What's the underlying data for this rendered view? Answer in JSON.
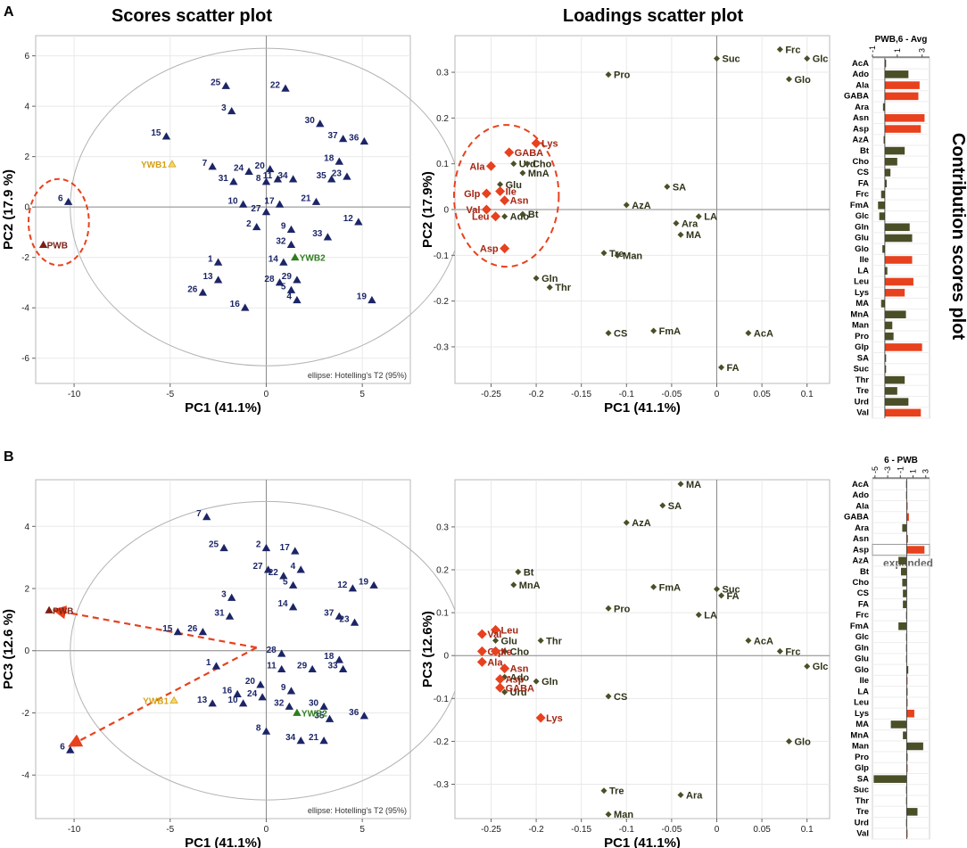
{
  "figure": {
    "panel_a_letter": "A",
    "panel_b_letter": "B",
    "scores_title": "Scores scatter plot",
    "loadings_title": "Loadings scatter plot",
    "contrib_title": "Contribution scores plot",
    "ellipse_note": "ellipse: Hotelling's T2 (95%)",
    "expanded_label": "expanded",
    "colors": {
      "scores_marker": "#1c2566",
      "loading_normal": "#4b4f27",
      "loading_highlight": "#e8411d",
      "label_highlight": "#a32512",
      "ywb1": "#d4a017",
      "ywb2": "#2e7d1e",
      "pwb": "#7a1f14",
      "bar_pos": "#e8411d",
      "bar_neg": "#4b4f27",
      "dashed": "#e8411d"
    }
  },
  "chart_data": [
    {
      "id": "A-scores",
      "type": "scatter",
      "xlabel": "PC1 (41.1%)",
      "ylabel": "PC2 (17.9 %)",
      "xlim": [
        -12,
        7.5
      ],
      "ylim": [
        -7,
        6.8
      ],
      "xticks": [
        -10,
        -5,
        0,
        5
      ],
      "yticks": [
        -6,
        -4,
        -2,
        0,
        2,
        4,
        6
      ],
      "points": [
        {
          "label": "1",
          "x": -2.5,
          "y": -2.2
        },
        {
          "label": "2",
          "x": -0.5,
          "y": -0.8
        },
        {
          "label": "3",
          "x": -1.8,
          "y": 3.8
        },
        {
          "label": "4",
          "x": 1.6,
          "y": -3.7
        },
        {
          "label": "5",
          "x": 1.3,
          "y": -3.3
        },
        {
          "label": "6",
          "x": -10.3,
          "y": 0.2
        },
        {
          "label": "7",
          "x": -2.8,
          "y": 1.6
        },
        {
          "label": "8",
          "x": 0,
          "y": 1.0
        },
        {
          "label": "9",
          "x": 1.3,
          "y": -0.9
        },
        {
          "label": "10",
          "x": -1.2,
          "y": 0.1
        },
        {
          "label": "11",
          "x": 0.6,
          "y": 1.1
        },
        {
          "label": "12",
          "x": 4.8,
          "y": -0.6
        },
        {
          "label": "13",
          "x": -2.5,
          "y": -2.9
        },
        {
          "label": "14",
          "x": 0.9,
          "y": -2.2
        },
        {
          "label": "15",
          "x": -5.2,
          "y": 2.8
        },
        {
          "label": "16",
          "x": -1.1,
          "y": -4.0
        },
        {
          "label": "17",
          "x": 0.7,
          "y": 0.1
        },
        {
          "label": "18",
          "x": 3.8,
          "y": 1.8
        },
        {
          "label": "19",
          "x": 5.5,
          "y": -3.7
        },
        {
          "label": "20",
          "x": 0.2,
          "y": 1.5
        },
        {
          "label": "21",
          "x": 2.6,
          "y": 0.2
        },
        {
          "label": "22",
          "x": 1.0,
          "y": 4.7
        },
        {
          "label": "23",
          "x": 4.2,
          "y": 1.2
        },
        {
          "label": "24",
          "x": -0.9,
          "y": 1.4
        },
        {
          "label": "25",
          "x": -2.1,
          "y": 4.8
        },
        {
          "label": "26",
          "x": -3.3,
          "y": -3.4
        },
        {
          "label": "27",
          "x": 0,
          "y": -0.2
        },
        {
          "label": "28",
          "x": 0.7,
          "y": -3.0
        },
        {
          "label": "29",
          "x": 1.6,
          "y": -2.9
        },
        {
          "label": "30",
          "x": 2.8,
          "y": 3.3
        },
        {
          "label": "31",
          "x": -1.7,
          "y": 1.0
        },
        {
          "label": "32",
          "x": 1.3,
          "y": -1.5
        },
        {
          "label": "33",
          "x": 3.2,
          "y": -1.2
        },
        {
          "label": "34",
          "x": 1.4,
          "y": 1.1
        },
        {
          "label": "35",
          "x": 3.4,
          "y": 1.1
        },
        {
          "label": "36",
          "x": 5.1,
          "y": 2.6
        },
        {
          "label": "37",
          "x": 4.0,
          "y": 2.7
        },
        {
          "label": "YWB1",
          "x": -4.9,
          "y": 1.7,
          "kind": "ywb1"
        },
        {
          "label": "YWB2",
          "x": 1.5,
          "y": -2.0,
          "kind": "ywb2"
        },
        {
          "label": "PWB",
          "x": -11.6,
          "y": -1.5,
          "kind": "pwb"
        }
      ]
    },
    {
      "id": "A-loadings",
      "type": "scatter",
      "xlabel": "PC1 (41.1%)",
      "ylabel": "PC2 (17.9%)",
      "xlim": [
        -0.29,
        0.125
      ],
      "ylim": [
        -0.38,
        0.38
      ],
      "xticks": [
        -0.25,
        -0.2,
        -0.15,
        -0.1,
        -0.05,
        0,
        0.05,
        0.1
      ],
      "yticks": [
        -0.3,
        -0.2,
        -0.1,
        0,
        0.1,
        0.2,
        0.3
      ],
      "points": [
        {
          "label": "Frc",
          "x": 0.07,
          "y": 0.35
        },
        {
          "label": "Glc",
          "x": 0.1,
          "y": 0.33
        },
        {
          "label": "Suc",
          "x": 0.0,
          "y": 0.33
        },
        {
          "label": "Glo",
          "x": 0.08,
          "y": 0.285
        },
        {
          "label": "Pro",
          "x": -0.12,
          "y": 0.295
        },
        {
          "label": "SA",
          "x": -0.055,
          "y": 0.05
        },
        {
          "label": "AzA",
          "x": -0.1,
          "y": 0.01
        },
        {
          "label": "LA",
          "x": -0.02,
          "y": -0.015
        },
        {
          "label": "Ara",
          "x": -0.045,
          "y": -0.03
        },
        {
          "label": "MA",
          "x": -0.04,
          "y": -0.055
        },
        {
          "label": "Tre",
          "x": -0.125,
          "y": -0.095
        },
        {
          "label": "Man",
          "x": -0.11,
          "y": -0.1
        },
        {
          "label": "Gln",
          "x": -0.2,
          "y": -0.15
        },
        {
          "label": "Thr",
          "x": -0.185,
          "y": -0.17
        },
        {
          "label": "CS",
          "x": -0.12,
          "y": -0.27
        },
        {
          "label": "FmA",
          "x": -0.07,
          "y": -0.265
        },
        {
          "label": "AcA",
          "x": 0.035,
          "y": -0.27
        },
        {
          "label": "FA",
          "x": 0.005,
          "y": -0.345
        },
        {
          "label": "Urd",
          "x": -0.225,
          "y": 0.1
        },
        {
          "label": "Cho",
          "x": -0.21,
          "y": 0.1
        },
        {
          "label": "MnA",
          "x": -0.215,
          "y": 0.08
        },
        {
          "label": "Glu",
          "x": -0.24,
          "y": 0.055
        },
        {
          "label": "Ado",
          "x": -0.235,
          "y": -0.015
        },
        {
          "label": "Bt",
          "x": -0.215,
          "y": -0.01
        },
        {
          "label": "Lys",
          "x": -0.2,
          "y": 0.145,
          "hl": true
        },
        {
          "label": "GABA",
          "x": -0.23,
          "y": 0.125,
          "hl": true
        },
        {
          "label": "Ala",
          "x": -0.25,
          "y": 0.095,
          "hl": true
        },
        {
          "label": "Glp",
          "x": -0.255,
          "y": 0.035,
          "hl": true
        },
        {
          "label": "Ile",
          "x": -0.24,
          "y": 0.04,
          "hl": true
        },
        {
          "label": "Asn",
          "x": -0.235,
          "y": 0.02,
          "hl": true
        },
        {
          "label": "Val",
          "x": -0.255,
          "y": 0.0,
          "hl": true
        },
        {
          "label": "Leu",
          "x": -0.245,
          "y": -0.015,
          "hl": true
        },
        {
          "label": "Asp",
          "x": -0.235,
          "y": -0.085,
          "hl": true
        }
      ]
    },
    {
      "id": "A-contrib",
      "type": "bar",
      "orientation": "horizontal",
      "title": "PWB,6 - Avg",
      "xticks": [
        -1,
        1,
        3
      ],
      "xlim": [
        -1,
        3.6
      ],
      "categories": [
        "AcA",
        "Ado",
        "Ala",
        "GABA",
        "Ara",
        "Asn",
        "Asp",
        "AzA",
        "Bt",
        "Cho",
        "CS",
        "FA",
        "Frc",
        "FmA",
        "Glc",
        "Gln",
        "Glu",
        "Glo",
        "Ile",
        "LA",
        "Leu",
        "Lys",
        "MA",
        "MnA",
        "Man",
        "Pro",
        "Glp",
        "SA",
        "Suc",
        "Thr",
        "Tre",
        "Urd",
        "Val"
      ],
      "values": [
        0.1,
        1.9,
        2.8,
        2.7,
        -0.15,
        3.2,
        2.9,
        -0.1,
        1.6,
        1.0,
        0.45,
        0.15,
        -0.3,
        -0.55,
        -0.45,
        2.0,
        2.2,
        -0.2,
        2.2,
        0.2,
        2.3,
        1.6,
        -0.3,
        1.7,
        0.6,
        0.7,
        3.0,
        0.1,
        0.1,
        1.6,
        1.0,
        1.9,
        2.9
      ],
      "highlight": [
        "Ala",
        "GABA",
        "Asn",
        "Asp",
        "Ile",
        "Leu",
        "Lys",
        "Glp",
        "Val"
      ]
    },
    {
      "id": "B-scores",
      "type": "scatter",
      "xlabel": "PC1 (41.1%)",
      "ylabel": "PC3 (12.6 %)",
      "xlim": [
        -12,
        7.5
      ],
      "ylim": [
        -5.4,
        5.5
      ],
      "xticks": [
        -10,
        -5,
        0,
        5
      ],
      "yticks": [
        -4,
        -2,
        0,
        2,
        4
      ],
      "points": [
        {
          "label": "1",
          "x": -2.6,
          "y": -0.5
        },
        {
          "label": "2",
          "x": 0,
          "y": 3.3
        },
        {
          "label": "3",
          "x": -1.8,
          "y": 1.7
        },
        {
          "label": "4",
          "x": 1.8,
          "y": 2.6
        },
        {
          "label": "5",
          "x": 1.4,
          "y": 2.1
        },
        {
          "label": "6",
          "x": -10.2,
          "y": -3.2
        },
        {
          "label": "7",
          "x": -3.1,
          "y": 4.3
        },
        {
          "label": "8",
          "x": 0,
          "y": -2.6
        },
        {
          "label": "9",
          "x": 1.3,
          "y": -1.3
        },
        {
          "label": "10",
          "x": -1.2,
          "y": -1.7
        },
        {
          "label": "11",
          "x": 0.8,
          "y": -0.6
        },
        {
          "label": "12",
          "x": 4.5,
          "y": 2.0
        },
        {
          "label": "13",
          "x": -2.8,
          "y": -1.7
        },
        {
          "label": "14",
          "x": 1.4,
          "y": 1.4
        },
        {
          "label": "15",
          "x": -4.6,
          "y": 0.6
        },
        {
          "label": "16",
          "x": -1.5,
          "y": -1.4
        },
        {
          "label": "17",
          "x": 1.5,
          "y": 3.2
        },
        {
          "label": "18",
          "x": 3.8,
          "y": -0.3
        },
        {
          "label": "19",
          "x": 5.6,
          "y": 2.1
        },
        {
          "label": "20",
          "x": -0.3,
          "y": -1.1
        },
        {
          "label": "21",
          "x": 3.0,
          "y": -2.9
        },
        {
          "label": "22",
          "x": 0.9,
          "y": 2.4
        },
        {
          "label": "23",
          "x": 4.6,
          "y": 0.9
        },
        {
          "label": "24",
          "x": -0.2,
          "y": -1.5
        },
        {
          "label": "25",
          "x": -2.2,
          "y": 3.3
        },
        {
          "label": "26",
          "x": -3.3,
          "y": 0.6
        },
        {
          "label": "27",
          "x": 0.1,
          "y": 2.6
        },
        {
          "label": "28",
          "x": 0.8,
          "y": -0.1
        },
        {
          "label": "29",
          "x": 2.4,
          "y": -0.6
        },
        {
          "label": "30",
          "x": 3.0,
          "y": -1.8
        },
        {
          "label": "31",
          "x": -1.9,
          "y": 1.1
        },
        {
          "label": "32",
          "x": 1.2,
          "y": -1.8
        },
        {
          "label": "33",
          "x": 4.0,
          "y": -0.6
        },
        {
          "label": "34",
          "x": 1.8,
          "y": -2.9
        },
        {
          "label": "35",
          "x": 3.3,
          "y": -2.2
        },
        {
          "label": "36",
          "x": 5.1,
          "y": -2.1
        },
        {
          "label": "37",
          "x": 3.8,
          "y": 1.1
        },
        {
          "label": "YWB1",
          "x": -4.8,
          "y": -1.6,
          "kind": "ywb1"
        },
        {
          "label": "YWB2",
          "x": 1.6,
          "y": -2.0,
          "kind": "ywb2"
        },
        {
          "label": "PWB",
          "x": -11.3,
          "y": 1.3,
          "kind": "pwb"
        }
      ],
      "arrows": [
        {
          "from": [
            -0.5,
            0.1
          ],
          "to": [
            -11.0,
            1.3
          ]
        },
        {
          "from": [
            -0.5,
            0.1
          ],
          "to": [
            -10.2,
            -3.05
          ]
        }
      ]
    },
    {
      "id": "B-loadings",
      "type": "scatter",
      "xlabel": "PC1 (41.1%)",
      "ylabel": "PC3 (12.6%)",
      "xlim": [
        -0.29,
        0.125
      ],
      "ylim": [
        -0.38,
        0.41
      ],
      "xticks": [
        -0.25,
        -0.2,
        -0.15,
        -0.1,
        -0.05,
        0,
        0.05,
        0.1
      ],
      "yticks": [
        -0.3,
        -0.2,
        -0.1,
        0,
        0.1,
        0.2,
        0.3
      ],
      "points": [
        {
          "label": "MA",
          "x": -0.04,
          "y": 0.4
        },
        {
          "label": "SA",
          "x": -0.06,
          "y": 0.35
        },
        {
          "label": "AzA",
          "x": -0.1,
          "y": 0.31
        },
        {
          "label": "Bt",
          "x": -0.22,
          "y": 0.195
        },
        {
          "label": "MnA",
          "x": -0.225,
          "y": 0.165
        },
        {
          "label": "FmA",
          "x": -0.07,
          "y": 0.16
        },
        {
          "label": "Suc",
          "x": 0.0,
          "y": 0.155
        },
        {
          "label": "FA",
          "x": 0.005,
          "y": 0.14
        },
        {
          "label": "Pro",
          "x": -0.12,
          "y": 0.11
        },
        {
          "label": "LA",
          "x": -0.02,
          "y": 0.095
        },
        {
          "label": "Thr",
          "x": -0.195,
          "y": 0.035
        },
        {
          "label": "AcA",
          "x": 0.035,
          "y": 0.035
        },
        {
          "label": "Frc",
          "x": 0.07,
          "y": 0.01
        },
        {
          "label": "Glc",
          "x": 0.1,
          "y": -0.025
        },
        {
          "label": "Gln",
          "x": -0.2,
          "y": -0.06
        },
        {
          "label": "CS",
          "x": -0.12,
          "y": -0.095
        },
        {
          "label": "Glo",
          "x": 0.08,
          "y": -0.2
        },
        {
          "label": "Tre",
          "x": -0.125,
          "y": -0.315
        },
        {
          "label": "Ara",
          "x": -0.04,
          "y": -0.325
        },
        {
          "label": "Man",
          "x": -0.12,
          "y": -0.37
        },
        {
          "label": "Glu",
          "x": -0.245,
          "y": 0.035
        },
        {
          "label": "Cho",
          "x": -0.235,
          "y": 0.01
        },
        {
          "label": "Ado",
          "x": -0.235,
          "y": -0.05
        },
        {
          "label": "Urd",
          "x": -0.235,
          "y": -0.085
        },
        {
          "label": "Leu",
          "x": -0.245,
          "y": 0.06,
          "hl": true
        },
        {
          "label": "Val",
          "x": -0.26,
          "y": 0.05,
          "hl": true
        },
        {
          "label": "Glp",
          "x": -0.26,
          "y": 0.01,
          "hl": true
        },
        {
          "label": "Ile",
          "x": -0.245,
          "y": 0.01,
          "hl": true
        },
        {
          "label": "Ala",
          "x": -0.26,
          "y": -0.015,
          "hl": true
        },
        {
          "label": "Asn",
          "x": -0.235,
          "y": -0.03,
          "hl": true
        },
        {
          "label": "Asp",
          "x": -0.24,
          "y": -0.055,
          "hl": true
        },
        {
          "label": "GABA",
          "x": -0.24,
          "y": -0.075,
          "hl": true
        },
        {
          "label": "Lys",
          "x": -0.195,
          "y": -0.145,
          "hl": true
        }
      ]
    },
    {
      "id": "B-contrib",
      "type": "bar",
      "orientation": "horizontal",
      "title": "6 - PWB",
      "xticks": [
        -5,
        -3,
        -1,
        1,
        3
      ],
      "xlim": [
        -5.4,
        3.6
      ],
      "categories": [
        "AcA",
        "Ado",
        "Ala",
        "GABA",
        "Ara",
        "Asn",
        "Asp",
        "AzA",
        "Bt",
        "Cho",
        "CS",
        "FA",
        "Frc",
        "FmA",
        "Glc",
        "Gln",
        "Glu",
        "Glo",
        "Ile",
        "LA",
        "Leu",
        "Lys",
        "MA",
        "MnA",
        "Man",
        "Pro",
        "Glp",
        "SA",
        "Suc",
        "Thr",
        "Tre",
        "Urd",
        "Val"
      ],
      "values": [
        -0.1,
        -0.1,
        0.15,
        0.35,
        -0.7,
        0.2,
        2.8,
        -1.3,
        -0.9,
        -0.7,
        -0.6,
        -0.6,
        -0.1,
        -1.3,
        -0.1,
        -0.1,
        -0.1,
        0.25,
        0.05,
        0.1,
        0.15,
        1.2,
        -2.5,
        -0.6,
        2.6,
        0.1,
        0.15,
        -5.2,
        -0.1,
        -0.1,
        1.7,
        -0.1,
        0.1
      ],
      "highlight": [
        "Ala",
        "GABA",
        "Asn",
        "Asp",
        "Ile",
        "Leu",
        "Lys",
        "Glp",
        "Val"
      ],
      "expanded": "Asp"
    }
  ]
}
